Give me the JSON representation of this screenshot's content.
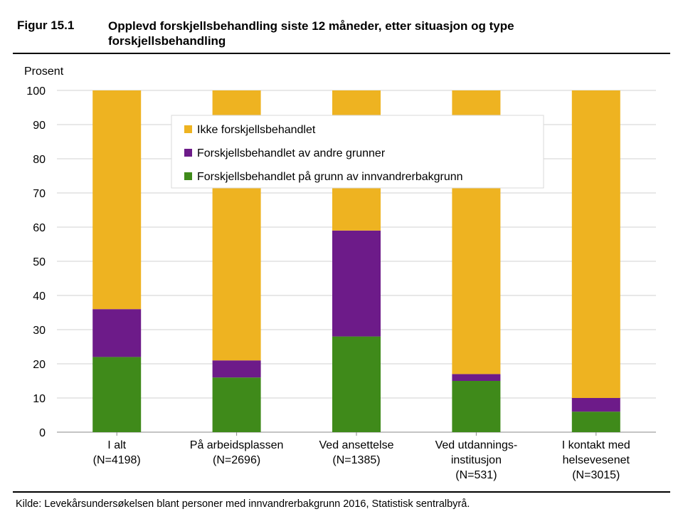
{
  "figure": {
    "label": "Figur 15.1",
    "title": "Opplevd forskjellsbehandling siste 12 måneder, etter situasjon og type forskjellsbehandling",
    "source": "Kilde: Levekårsundersøkelsen blant personer med innvandrerbakgrunn 2016, Statistisk sentralbyrå."
  },
  "chart_data": {
    "type": "bar",
    "stacked": true,
    "ylabel": "Prosent",
    "ylim": [
      0,
      100
    ],
    "yticks": [
      0,
      10,
      20,
      30,
      40,
      50,
      60,
      70,
      80,
      90,
      100
    ],
    "grid": true,
    "legend_position": "top-center",
    "categories": [
      [
        "I alt",
        "(N=4198)"
      ],
      [
        "På arbeidsplassen",
        "(N=2696)"
      ],
      [
        "Ved ansettelse",
        "(N=1385)"
      ],
      [
        "Ved utdannings-",
        "institusjon",
        "(N=531)"
      ],
      [
        "I kontakt med",
        "helsevesenet",
        "(N=3015)"
      ]
    ],
    "series": [
      {
        "name": "Forskjellsbehandlet på grunn av innvandrerbakgrunn",
        "color": "#3f8a1a",
        "values": [
          22,
          16,
          28,
          15,
          6
        ]
      },
      {
        "name": "Forskjellsbehandlet av andre grunner",
        "color": "#6d1b89",
        "values": [
          14,
          5,
          31,
          2,
          4
        ]
      },
      {
        "name": "Ikke forskjellsbehandlet",
        "color": "#eeb321",
        "values": [
          64,
          79,
          41,
          83,
          90
        ]
      }
    ],
    "legend_order": [
      2,
      1,
      0
    ]
  }
}
